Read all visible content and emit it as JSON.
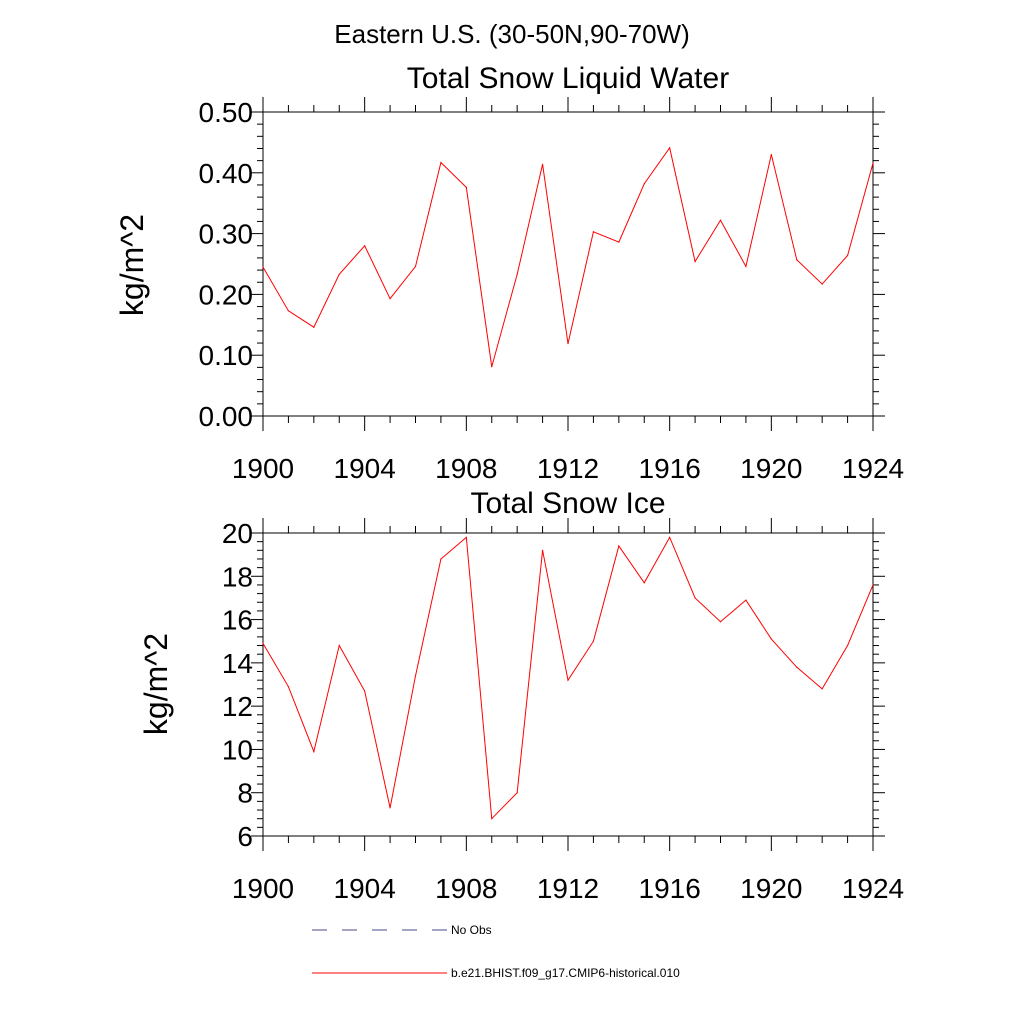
{
  "figure": {
    "suptitle": "Eastern U.S. (30-50N,90-70W)"
  },
  "colors": {
    "model": "#ff0000",
    "obs": "#4a4a8a",
    "axis": "#000000"
  },
  "legend": {
    "placement": "bottom",
    "entries": [
      {
        "label": "No Obs",
        "style": "dashed"
      },
      {
        "label": "b.e21.BHIST.f09_g17.CMIP6-historical.010",
        "style": "solid"
      }
    ]
  },
  "chart_data": [
    {
      "type": "line",
      "title": "Total Snow Liquid Water",
      "xlabel": "",
      "ylabel": "kg/m^2",
      "xlim": [
        1900,
        1924
      ],
      "ylim": [
        0,
        0.5
      ],
      "xticks": [
        "1900",
        "1904",
        "1908",
        "1912",
        "1916",
        "1920",
        "1924"
      ],
      "yticks": [
        "0.00",
        "0.10",
        "0.20",
        "0.30",
        "0.40",
        "0.50"
      ],
      "grid": false,
      "x": [
        1900,
        1901,
        1902,
        1903,
        1904,
        1905,
        1906,
        1907,
        1908,
        1909,
        1910,
        1911,
        1912,
        1913,
        1914,
        1915,
        1916,
        1917,
        1918,
        1919,
        1920,
        1921,
        1922,
        1923,
        1924
      ],
      "series": [
        {
          "name": "b.e21.BHIST.f09_g17.CMIP6-historical.010",
          "values": [
            0.245,
            0.173,
            0.146,
            0.233,
            0.28,
            0.193,
            0.246,
            0.417,
            0.376,
            0.081,
            0.233,
            0.414,
            0.119,
            0.303,
            0.286,
            0.382,
            0.441,
            0.254,
            0.322,
            0.246,
            0.43,
            0.257,
            0.217,
            0.264,
            0.416
          ]
        }
      ]
    },
    {
      "type": "line",
      "title": "Total Snow Ice",
      "xlabel": "",
      "ylabel": "kg/m^2",
      "xlim": [
        1900,
        1924
      ],
      "ylim": [
        6,
        20
      ],
      "xticks": [
        "1900",
        "1904",
        "1908",
        "1912",
        "1916",
        "1920",
        "1924"
      ],
      "yticks": [
        "6",
        "8",
        "10",
        "12",
        "14",
        "16",
        "18",
        "20"
      ],
      "grid": false,
      "x": [
        1900,
        1901,
        1902,
        1903,
        1904,
        1905,
        1906,
        1907,
        1908,
        1909,
        1910,
        1911,
        1912,
        1913,
        1914,
        1915,
        1916,
        1917,
        1918,
        1919,
        1920,
        1921,
        1922,
        1923,
        1924
      ],
      "series": [
        {
          "name": "b.e21.BHIST.f09_g17.CMIP6-historical.010",
          "values": [
            14.9,
            12.9,
            9.9,
            14.8,
            12.7,
            7.3,
            13.4,
            18.8,
            19.8,
            6.8,
            8.0,
            19.2,
            13.2,
            15.0,
            19.4,
            17.7,
            19.8,
            17.0,
            15.9,
            16.9,
            15.1,
            13.8,
            12.8,
            14.8,
            17.6
          ]
        }
      ]
    }
  ]
}
